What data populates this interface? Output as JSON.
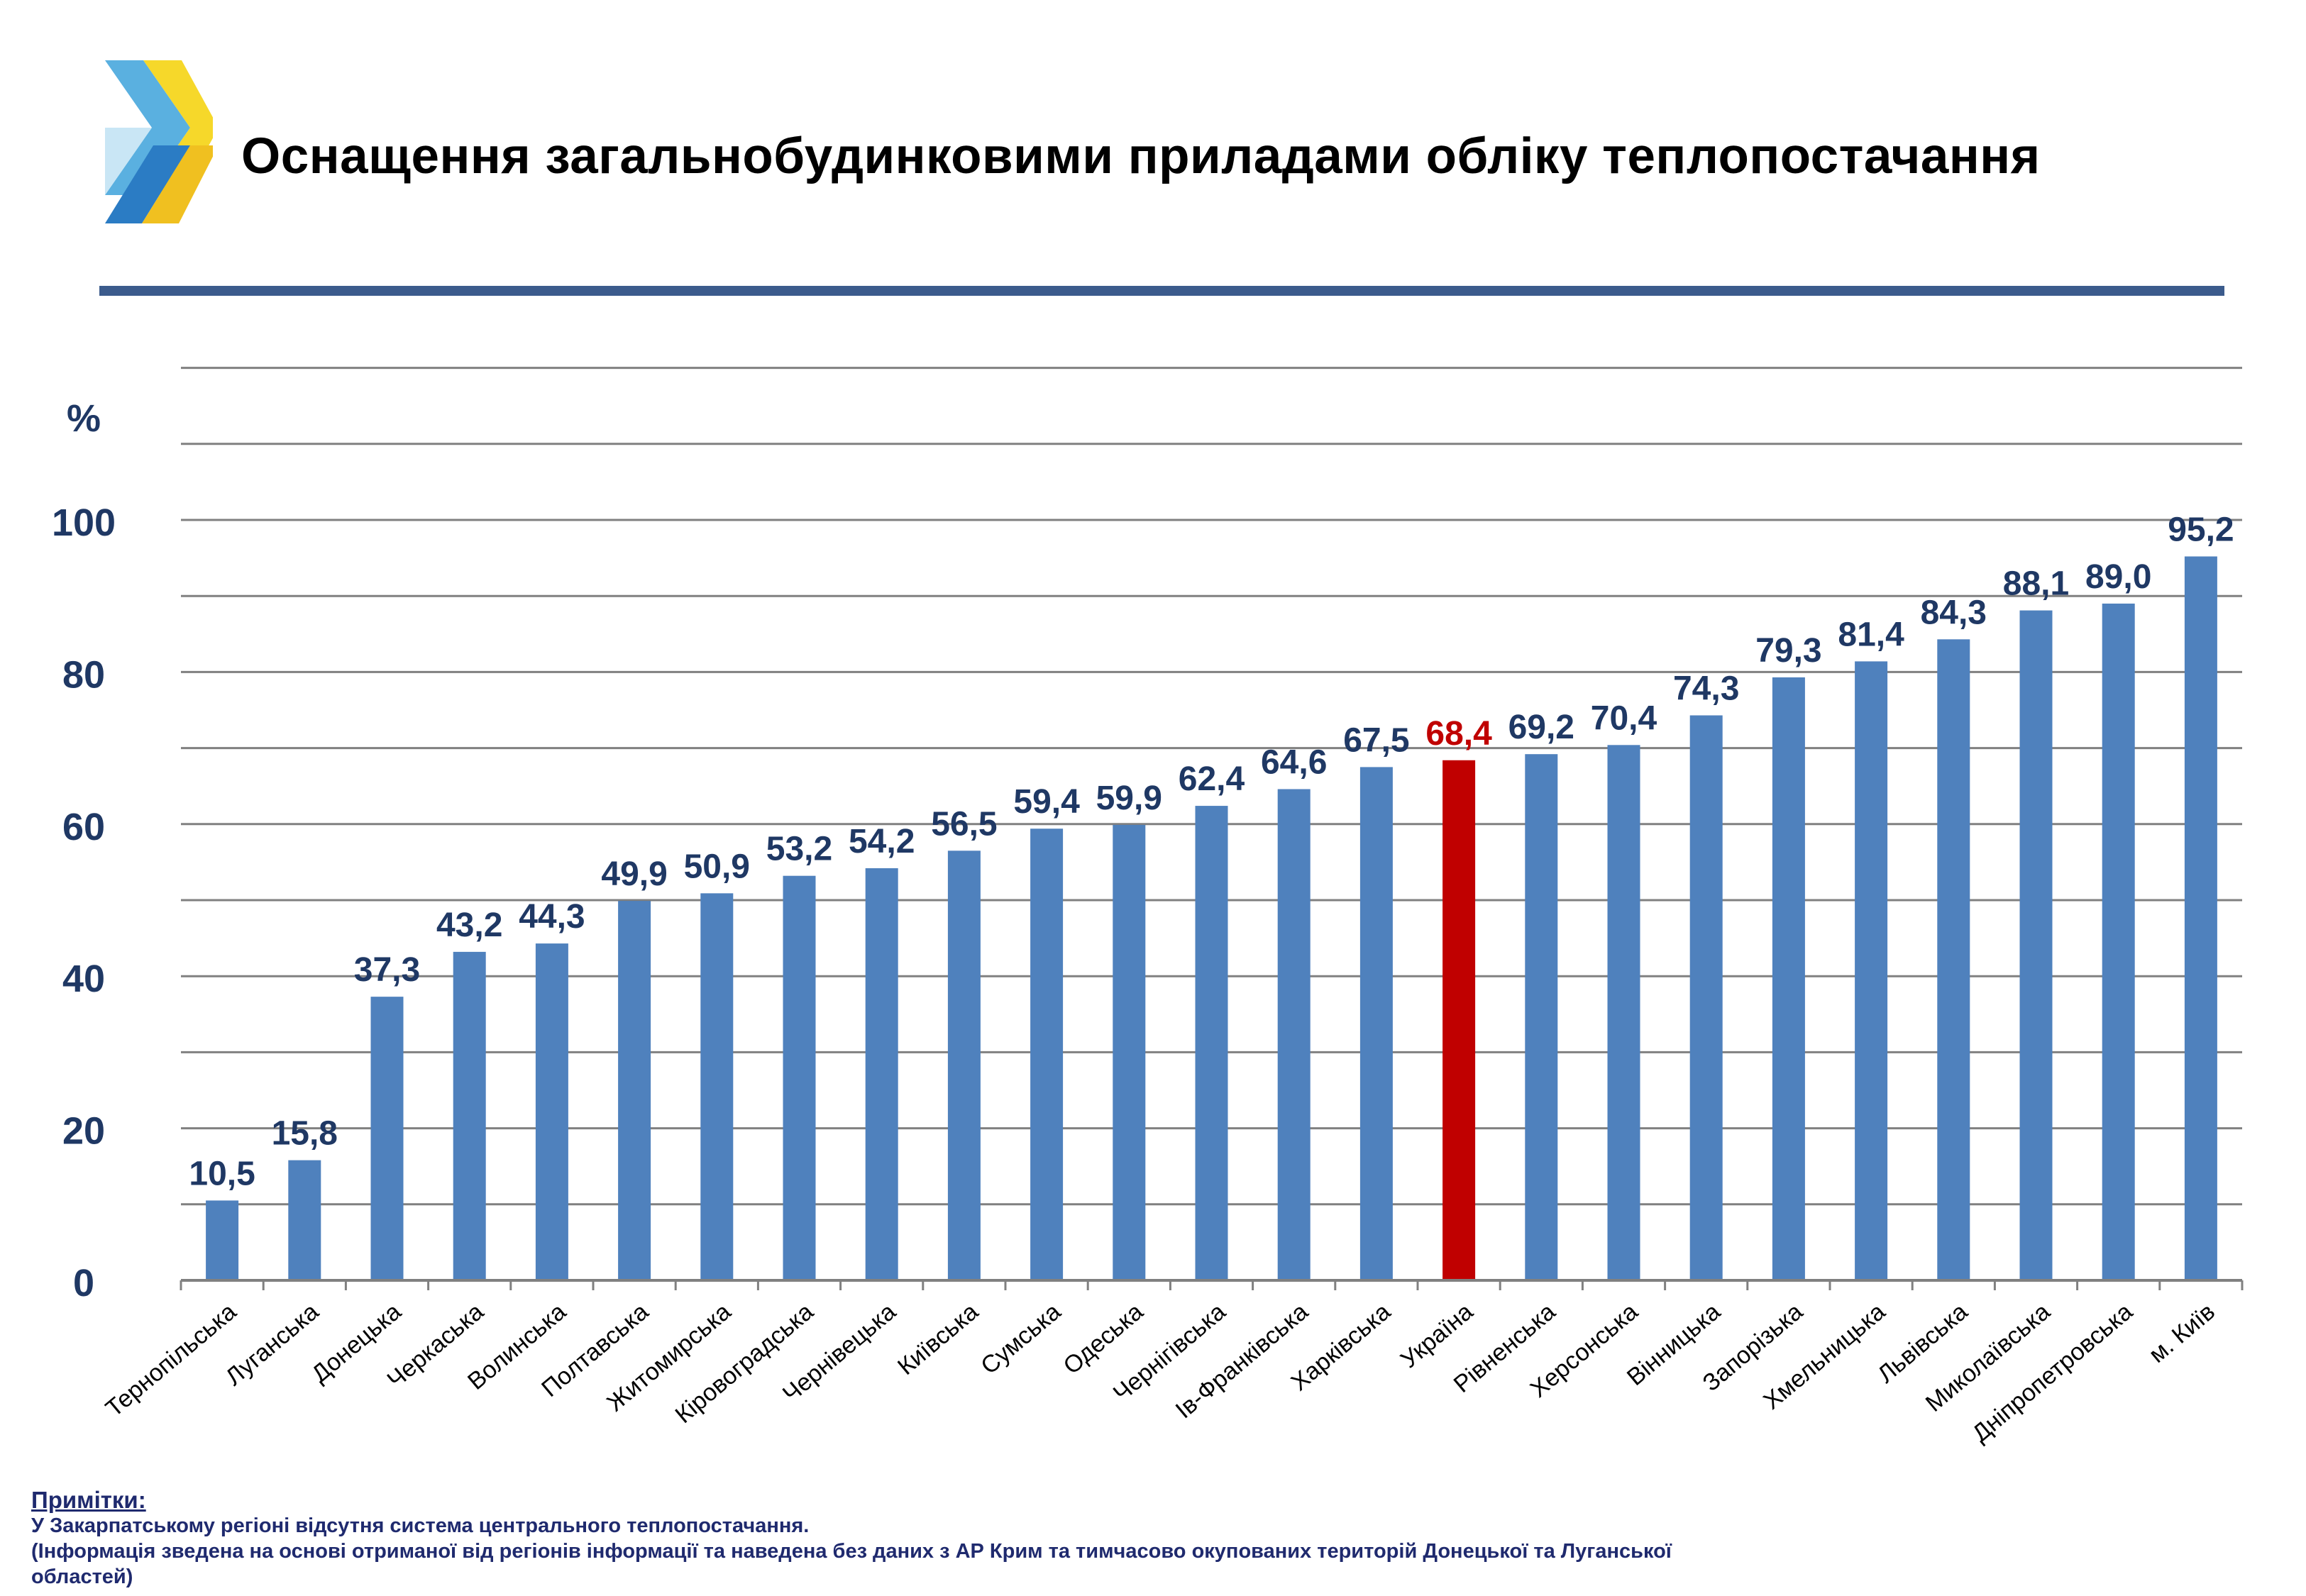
{
  "title": "Оснащення загальнобудинковими приладами обліку теплопостачання",
  "colors": {
    "bar": "#4f81bd",
    "highlight": "#c00000",
    "value_label": "#1f3864",
    "grid": "#808080",
    "rule": "#3b5b8c",
    "notes": "#1f2a6e"
  },
  "notes": {
    "heading": "Примітки:",
    "lines": [
      "У Закарпатському регіоні відсутня система центрального теплопостачання.",
      "(Інформація зведена на основі отриманої від регіонів інформації та наведена без даних з АР Крим та тимчасово окупованих територій Донецької та Луганської",
      "областей)"
    ]
  },
  "chart_data": {
    "type": "bar",
    "ylabel": "%",
    "ylim": [
      0,
      126
    ],
    "yticks": [
      0,
      20,
      40,
      60,
      80,
      100
    ],
    "grid": true,
    "categories": [
      "Тернопільська",
      "Луганська",
      "Донецька",
      "Черкаська",
      "Волинська",
      "Полтавська",
      "Житомирська",
      "Кіровоградська",
      "Чернівецька",
      "Київська",
      "Сумська",
      "Одеська",
      "Чернігівська",
      "Ів-Франківська",
      "Харківська",
      "Україна",
      "Рівненська",
      "Херсонська",
      "Вінницька",
      "Запорізька",
      "Хмельницька",
      "Львівська",
      "Миколаївська",
      "Дніпропетровська",
      "м. Київ"
    ],
    "values": [
      10.5,
      15.8,
      37.3,
      43.2,
      44.3,
      49.9,
      50.9,
      53.2,
      54.2,
      56.5,
      59.4,
      59.9,
      62.4,
      64.6,
      67.5,
      68.4,
      69.2,
      70.4,
      74.3,
      79.3,
      81.4,
      84.3,
      88.1,
      89.0,
      95.2
    ],
    "value_labels": [
      "10,5",
      "15,8",
      "37,3",
      "43,2",
      "44,3",
      "49,9",
      "50,9",
      "53,2",
      "54,2",
      "56,5",
      "59,4",
      "59,9",
      "62,4",
      "64,6",
      "67,5",
      "68,4",
      "69,2",
      "70,4",
      "74,3",
      "79,3",
      "81,4",
      "84,3",
      "88,1",
      "89,0",
      "95,2"
    ],
    "highlight_category": "Україна"
  }
}
